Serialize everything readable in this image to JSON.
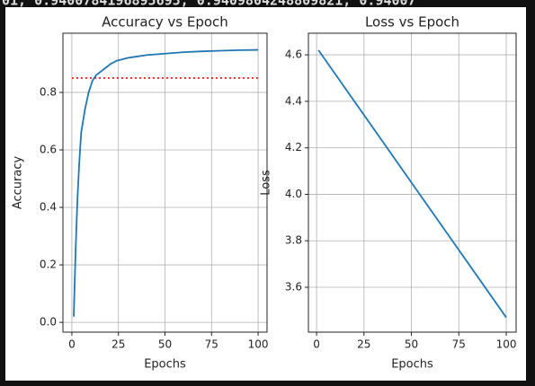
{
  "header_text": "01, 0.9400784196895695, 0.9409804248809821, 0.94007",
  "chart_data": [
    {
      "type": "line",
      "title": "Accuracy vs Epoch",
      "x_label": "Epochs",
      "y_label": "Accuracy",
      "x": [
        1,
        2,
        3,
        4,
        5,
        7,
        9,
        11,
        13,
        15,
        18,
        21,
        24,
        30,
        35,
        40,
        50,
        60,
        70,
        80,
        90,
        100
      ],
      "series": [
        {
          "name": "Accuracy",
          "color": "#1f77b4",
          "values": [
            0.02,
            0.25,
            0.43,
            0.56,
            0.66,
            0.74,
            0.8,
            0.84,
            0.86,
            0.87,
            0.885,
            0.9,
            0.91,
            0.92,
            0.925,
            0.93,
            0.935,
            0.94,
            0.943,
            0.945,
            0.947,
            0.948
          ]
        }
      ],
      "reference_line": {
        "value": 0.85,
        "xmin": 0,
        "xmax": 100,
        "color": "#ff0000",
        "style": "dotted"
      },
      "xlim": [
        -4.8,
        104.8
      ],
      "xticks": [
        0,
        25,
        50,
        75,
        100
      ],
      "ylim": [
        -0.034,
        1.006
      ],
      "yticks": [
        {
          "value": 0,
          "label": "0.0"
        },
        0.2,
        0.4,
        0.6,
        0.8
      ],
      "grid": true
    },
    {
      "type": "line",
      "title": "Loss vs Epoch",
      "x_label": "Epochs",
      "y_label": "Loss",
      "x": [
        1,
        100
      ],
      "series": [
        {
          "name": "Loss",
          "color": "#1f77b4",
          "values": [
            4.62,
            3.47
          ]
        }
      ],
      "xlim": [
        -4.3,
        105.2
      ],
      "xticks": [
        0,
        25,
        50,
        75,
        100
      ],
      "ylim": [
        3.407,
        4.693
      ],
      "yticks": [
        3.6,
        3.8,
        {
          "value": 4,
          "label": "4.0"
        },
        4.2,
        4.4,
        4.6
      ],
      "grid": true
    }
  ]
}
